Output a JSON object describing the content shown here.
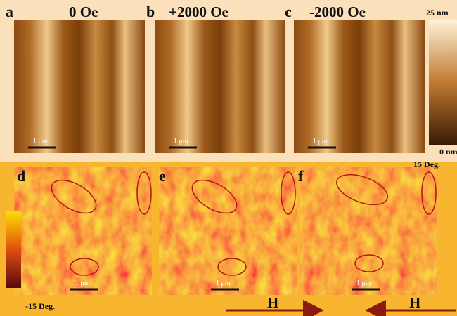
{
  "panels": [
    {
      "label": "a",
      "field": "0 Oe",
      "scale_bar": "1 μm"
    },
    {
      "label": "b",
      "field": "+2000 Oe",
      "scale_bar": "1 μm"
    },
    {
      "label": "c",
      "field": "-2000 Oe",
      "scale_bar": "1 μm"
    },
    {
      "label": "d",
      "scale_bar": "1 μm"
    },
    {
      "label": "e",
      "scale_bar": "1 μm"
    },
    {
      "label": "f",
      "scale_bar": "1 μm"
    }
  ],
  "height_colorbar": {
    "max": "25 nm",
    "min": "0 nm"
  },
  "phase_colorbar": {
    "max": "15 Deg.",
    "min": "-15 Deg."
  },
  "field_arrows": [
    {
      "label": "H"
    },
    {
      "label": "H"
    }
  ]
}
